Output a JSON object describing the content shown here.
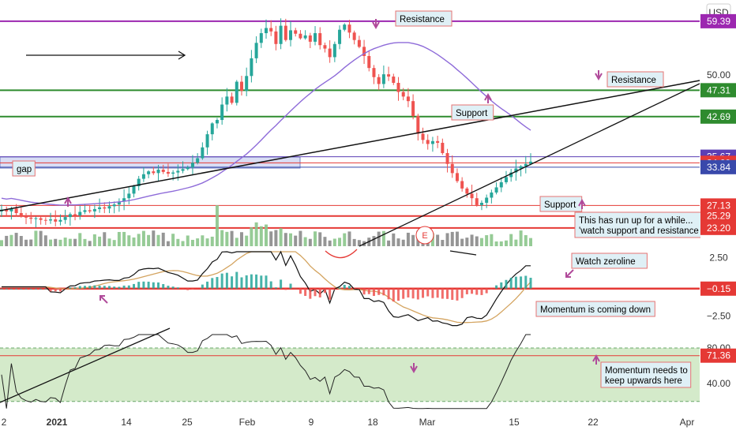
{
  "chart_data": {
    "type": "candlestick",
    "currency": "USD",
    "price_panel": {
      "ylim": [
        20,
        62
      ],
      "ticks": [
        {
          "v": 50.0,
          "label": "50.00"
        }
      ],
      "levels": [
        {
          "v": 59.39,
          "label": "59.39",
          "color": "#9c27b0",
          "kind": "purple"
        },
        {
          "v": 47.31,
          "label": "47.31",
          "color": "#2e8b2e",
          "kind": "green"
        },
        {
          "v": 42.69,
          "label": "42.69",
          "color": "#2e8b2e",
          "kind": "green"
        },
        {
          "v": 35.67,
          "label": "35.67",
          "color": "#5b3fb5",
          "kind": "purple-thin"
        },
        {
          "v": 34.6,
          "label": "34.60",
          "color": "#e53935",
          "kind": "red-thin"
        },
        {
          "v": 33.84,
          "label": "33.84",
          "color": "#3949ab",
          "kind": "blue"
        },
        {
          "v": 27.13,
          "label": "27.13",
          "color": "#e53935",
          "kind": "red-thin"
        },
        {
          "v": 25.29,
          "label": "25.29",
          "color": "#e53935",
          "kind": "red"
        },
        {
          "v": 23.2,
          "label": "23.20",
          "color": "#e53935",
          "kind": "red"
        }
      ]
    },
    "momentum_panel": {
      "ylim": [
        -3.8,
        3.2
      ],
      "ticks": [
        {
          "v": 2.5,
          "label": "2.50"
        },
        {
          "v": -2.5,
          "label": "−2.50"
        }
      ],
      "level": {
        "v": -0.15,
        "label": "−0.15",
        "color": "#e53935"
      }
    },
    "rsi_panel": {
      "ylim": [
        10,
        95
      ],
      "ticks": [
        {
          "v": 80,
          "label": "80.00"
        },
        {
          "v": 40,
          "label": "40.00"
        }
      ],
      "level": {
        "v": 71.36,
        "label": "71.36",
        "color": "#e53935"
      }
    },
    "x_axis": [
      {
        "label": "2",
        "bold": false
      },
      {
        "label": "2021",
        "bold": true
      },
      {
        "label": "14",
        "bold": false
      },
      {
        "label": "25",
        "bold": false
      },
      {
        "label": "Feb",
        "bold": false
      },
      {
        "label": "9",
        "bold": false
      },
      {
        "label": "18",
        "bold": false
      },
      {
        "label": "Mar",
        "bold": false
      },
      {
        "label": "15",
        "bold": false
      },
      {
        "label": "22",
        "bold": false
      },
      {
        "label": "Apr",
        "bold": false
      }
    ],
    "annotations": [
      {
        "text": "Resistance",
        "arrow": "down"
      },
      {
        "text": "Resistance",
        "arrow": "down"
      },
      {
        "text": "Support",
        "arrow": "up"
      },
      {
        "text": "Support",
        "arrow": "up"
      },
      {
        "text": "gap",
        "arrow": ""
      },
      {
        "text": "This has run up for a while...\n'watch support and resistance",
        "arrow": ""
      },
      {
        "text": "Watch zeroline",
        "arrow": "down-left"
      },
      {
        "text": "Momentum is coming down",
        "arrow": ""
      },
      {
        "text": "Momentum needs to\nkeep upwards here",
        "arrow": "up"
      },
      {
        "text": "E",
        "arrow": ""
      }
    ],
    "closes": [
      26.4,
      26.1,
      26.6,
      25.8,
      25.3,
      25.0,
      24.8,
      24.9,
      24.6,
      24.5,
      24.7,
      24.3,
      24.6,
      25.1,
      25.6,
      25.4,
      26.0,
      26.3,
      26.1,
      26.5,
      26.8,
      26.6,
      27.0,
      27.3,
      27.8,
      28.4,
      29.2,
      30.5,
      31.8,
      32.6,
      33.1,
      32.8,
      33.4,
      33.0,
      32.7,
      32.9,
      33.2,
      33.5,
      33.8,
      34.6,
      35.4,
      37.3,
      39.6,
      41.5,
      42.1,
      44.8,
      46.2,
      45.1,
      48.8,
      47.2,
      49.8,
      52.9,
      55.6,
      57.3,
      58.2,
      57.6,
      55.4,
      58.6,
      56.1,
      57.8,
      57.2,
      56.4,
      56.9,
      55.8,
      57.3,
      55.2,
      54.6,
      53.1,
      55.4,
      57.9,
      58.8,
      57.4,
      56.1,
      54.9,
      53.3,
      51.2,
      49.6,
      48.4,
      50.1,
      49.7,
      48.6,
      47.0,
      46.2,
      45.4,
      42.8,
      39.7,
      38.6,
      37.9,
      38.4,
      38.1,
      36.3,
      34.4,
      32.8,
      31.4,
      30.1,
      29.2,
      28.4,
      27.2,
      27.6,
      28.5,
      29.4,
      30.3,
      31.2,
      32.1,
      32.9,
      33.6,
      34.0,
      34.4,
      34.8
    ]
  }
}
